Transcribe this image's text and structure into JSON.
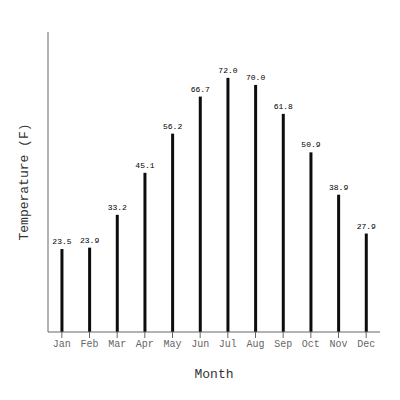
{
  "chart_data": {
    "type": "bar",
    "categories": [
      "Jan",
      "Feb",
      "Mar",
      "Apr",
      "May",
      "Jun",
      "Jul",
      "Aug",
      "Sep",
      "Oct",
      "Nov",
      "Dec"
    ],
    "values": [
      23.5,
      23.9,
      33.2,
      45.1,
      56.2,
      66.7,
      72.0,
      70.0,
      61.8,
      50.9,
      38.9,
      27.9
    ],
    "value_labels": [
      "23.5",
      "23.9",
      "33.2",
      "45.1",
      "56.2",
      "66.7",
      "72.0",
      "70.0",
      "61.8",
      "50.9",
      "38.9",
      "27.9"
    ],
    "color": "#0d0d0d",
    "xlabel": "Month",
    "ylabel": "Temperature (F)",
    "ylim": [
      0,
      85
    ],
    "data_labels": true,
    "tick_labels": "x",
    "grid": false
  }
}
